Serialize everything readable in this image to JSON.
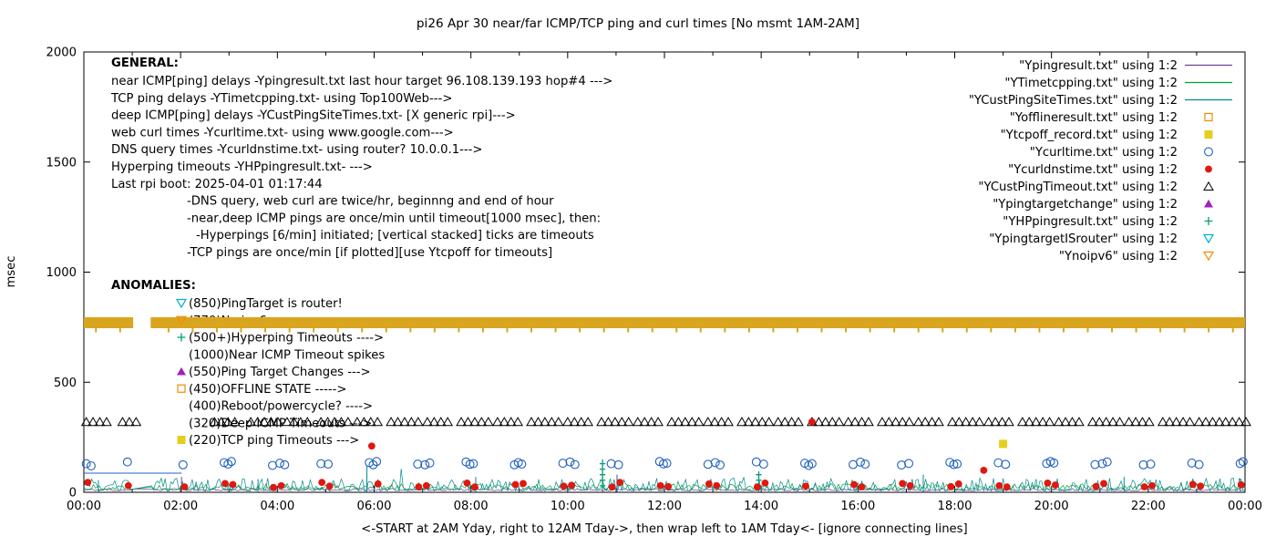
{
  "chart_data": {
    "type": "scatter",
    "title": "pi26 Apr 30  near/far ICMP/TCP ping and curl times [No msmt 1AM-2AM]",
    "xlabel": "<-START at 2AM Yday, right to 12AM Tday->, then wrap left to 1AM Tday<- [ignore connecting lines]",
    "ylabel": "msec",
    "ylim": [
      0,
      2000
    ],
    "xlim_hours": [
      0,
      24
    ],
    "grid": false,
    "x_ticks": [
      "00:00",
      "02:00",
      "04:00",
      "06:00",
      "08:00",
      "10:00",
      "12:00",
      "14:00",
      "16:00",
      "18:00",
      "20:00",
      "22:00",
      "00:00"
    ],
    "y_ticks": [
      0,
      500,
      1000,
      1500,
      2000
    ],
    "legend_position": "top-right",
    "legend": [
      {
        "label": "\"Ypingresult.txt\" using 1:2",
        "marker": "line",
        "color": "#7040A0"
      },
      {
        "label": "\"YTimetcpping.txt\" using 1:2",
        "marker": "line",
        "color": "#00A332"
      },
      {
        "label": "\"YCustPingSiteTimes.txt\" using 1:2",
        "marker": "line",
        "color": "#008B8B"
      },
      {
        "label": "\"Yofflineresult.txt\" using 1:2",
        "marker": "square-open",
        "color": "#F08C00"
      },
      {
        "label": "\"Ytcpoff_record.txt\" using 1:2",
        "marker": "square-filled",
        "color": "#E3CF1C"
      },
      {
        "label": "\"Ycurltime.txt\" using 1:2",
        "marker": "circle-open",
        "color": "#2060C0"
      },
      {
        "label": "\"Ycurldnstime.txt\" using 1:2",
        "marker": "circle-filled",
        "color": "#DF1810"
      },
      {
        "label": "\"YCustPingTimeout.txt\" using 1:2",
        "marker": "triangle-open",
        "color": "#000000"
      },
      {
        "label": "\"Ypingtargetchange\" using 1:2",
        "marker": "triangle-filled",
        "color": "#A020C0"
      },
      {
        "label": "\"YHPpingresult.txt\" using 1:2",
        "marker": "plus",
        "color": "#00A070"
      },
      {
        "label": "\"YpingtargetISrouter\" using 1:2",
        "marker": "triangle-down-open",
        "color": "#00AECC"
      },
      {
        "label": "\"Ynoipv6\" using 1:2",
        "marker": "triangle-down-open",
        "color": "#F08C00"
      }
    ],
    "annotations": {
      "general": {
        "header": "GENERAL:",
        "lines": [
          {
            "indent": 0,
            "text": "near ICMP[ping] delays -Ypingresult.txt last hour target 96.108.139.193 hop#4 --->"
          },
          {
            "indent": 0,
            "text": "TCP ping delays -YTimetcpping.txt- using Top100Web--->"
          },
          {
            "indent": 0,
            "text": "deep ICMP[ping] delays -YCustPingSiteTimes.txt- [X generic rpi]--->"
          },
          {
            "indent": 0,
            "text": "web curl times -Ycurltime.txt- using www.google.com--->"
          },
          {
            "indent": 0,
            "text": "DNS query times -Ycurldnstime.txt- using router? 10.0.0.1--->"
          },
          {
            "indent": 0,
            "text": "Hyperping timeouts -YHPpingresult.txt- --->"
          },
          {
            "indent": 0,
            "text": "Last rpi boot: 2025-04-01 01:17:44"
          },
          {
            "indent": 1,
            "text": "-DNS query, web curl are twice/hr, beginnng and end of hour"
          },
          {
            "indent": 1,
            "text": "-near,deep ICMP pings are once/min until timeout[1000 msec], then:"
          },
          {
            "indent": 2,
            "text": "-Hyperpings [6/min] initiated; [vertical stacked] ticks are timeouts"
          },
          {
            "indent": 1,
            "text": "-TCP pings are once/min [if plotted][use Ytcpoff for timeouts]"
          }
        ]
      },
      "anomalies": {
        "header": "ANOMALIES:",
        "lines": [
          {
            "marker": "triangle-down-open",
            "color": "#00AECC",
            "text": "(850)PingTarget is router!"
          },
          {
            "marker": "triangle-down-open",
            "color": "#F08C00",
            "text": "(770)No ipv6 --->",
            "note": "mostly hidden behind gold band"
          },
          {
            "marker": "plus",
            "color": "#00A070",
            "text": "(500+)Hyperping Timeouts ---->"
          },
          {
            "marker": null,
            "color": "#000000",
            "text": "(1000)Near ICMP Timeout spikes"
          },
          {
            "marker": "triangle-filled",
            "color": "#A020C0",
            "text": "(550)Ping Target Changes --->"
          },
          {
            "marker": "square-open",
            "color": "#F08C00",
            "text": "(450)OFFLINE STATE ----->"
          },
          {
            "marker": null,
            "color": "#000000",
            "text": "(400)Reboot/powercycle? ---->"
          },
          {
            "marker": null,
            "color": "#000000",
            "text": "(320)Deep ICMP Timeouts --->"
          },
          {
            "marker": "square-filled",
            "color": "#E3CF1C",
            "text": "(220)TCP ping Timeouts --->"
          }
        ]
      }
    },
    "series": {
      "noipv6_band": {
        "name": "Ynoipv6",
        "y": 770,
        "color": "#D9A51E",
        "segments_hours": [
          [
            0,
            1.02
          ],
          [
            1.38,
            24
          ]
        ],
        "tick_spacing_h": 0.5
      },
      "deep_icmp_timeouts": {
        "name": "YCustPingTimeout",
        "marker": "triangle-open",
        "color": "#000000",
        "y": 320,
        "run_spacing_h": 0.14,
        "runs": [
          [
            0.05,
            4
          ],
          [
            0.8,
            3
          ],
          [
            2.7,
            4
          ],
          [
            3.45,
            5
          ],
          [
            4.2,
            4
          ],
          [
            4.9,
            5
          ],
          [
            5.65,
            4
          ],
          [
            6.35,
            5
          ],
          [
            7.1,
            4
          ],
          [
            7.8,
            5
          ],
          [
            8.55,
            4
          ],
          [
            9.25,
            5
          ],
          [
            10.0,
            4
          ],
          [
            10.7,
            5
          ],
          [
            11.45,
            4
          ],
          [
            12.15,
            5
          ],
          [
            12.9,
            4
          ],
          [
            13.6,
            5
          ],
          [
            14.35,
            4
          ],
          [
            15.05,
            5
          ],
          [
            15.8,
            4
          ],
          [
            16.5,
            5
          ],
          [
            17.25,
            4
          ],
          [
            17.95,
            5
          ],
          [
            18.7,
            4
          ],
          [
            19.4,
            5
          ],
          [
            20.15,
            4
          ],
          [
            20.85,
            5
          ],
          [
            21.6,
            4
          ],
          [
            22.3,
            5
          ],
          [
            23.05,
            4
          ],
          [
            23.6,
            4
          ]
        ]
      },
      "curl_times": {
        "name": "Ycurltime",
        "marker": "circle-open",
        "color": "#2060C0",
        "points": [
          [
            0.05,
            130
          ],
          [
            0.15,
            120
          ],
          [
            0.9,
            138
          ],
          [
            2.05,
            125
          ],
          [
            2.9,
            135
          ],
          [
            2.98,
            128
          ],
          [
            3.05,
            140
          ],
          [
            3.9,
            122
          ],
          [
            4.05,
            132
          ],
          [
            4.15,
            125
          ],
          [
            4.9,
            130
          ],
          [
            5.05,
            128
          ],
          [
            5.9,
            135
          ],
          [
            5.98,
            125
          ],
          [
            6.05,
            140
          ],
          [
            6.9,
            128
          ],
          [
            7.05,
            125
          ],
          [
            7.15,
            133
          ],
          [
            7.9,
            138
          ],
          [
            7.98,
            127
          ],
          [
            8.05,
            130
          ],
          [
            8.9,
            125
          ],
          [
            8.98,
            135
          ],
          [
            9.05,
            128
          ],
          [
            9.9,
            132
          ],
          [
            10.05,
            138
          ],
          [
            10.15,
            126
          ],
          [
            10.9,
            130
          ],
          [
            11.05,
            125
          ],
          [
            11.9,
            140
          ],
          [
            11.98,
            129
          ],
          [
            12.05,
            132
          ],
          [
            12.9,
            127
          ],
          [
            13.05,
            135
          ],
          [
            13.15,
            124
          ],
          [
            13.9,
            138
          ],
          [
            14.05,
            128
          ],
          [
            14.9,
            132
          ],
          [
            14.98,
            122
          ],
          [
            15.05,
            130
          ],
          [
            15.9,
            126
          ],
          [
            16.05,
            137
          ],
          [
            16.15,
            128
          ],
          [
            16.9,
            124
          ],
          [
            17.05,
            131
          ],
          [
            17.9,
            136
          ],
          [
            17.98,
            126
          ],
          [
            18.05,
            129
          ],
          [
            18.9,
            134
          ],
          [
            19.05,
            127
          ],
          [
            19.9,
            131
          ],
          [
            19.98,
            140
          ],
          [
            20.05,
            133
          ],
          [
            20.9,
            126
          ],
          [
            21.05,
            130
          ],
          [
            21.15,
            138
          ],
          [
            21.9,
            125
          ],
          [
            22.05,
            128
          ],
          [
            22.9,
            133
          ],
          [
            23.05,
            126
          ],
          [
            23.9,
            131
          ],
          [
            23.96,
            139
          ]
        ]
      },
      "dns_times": {
        "name": "Ycurldnstime",
        "marker": "circle-filled",
        "color": "#DF1810",
        "points": [
          [
            0.08,
            45
          ],
          [
            0.92,
            30
          ],
          [
            2.08,
            25
          ],
          [
            2.92,
            40
          ],
          [
            3.08,
            35
          ],
          [
            3.92,
            22
          ],
          [
            4.08,
            30
          ],
          [
            4.92,
            45
          ],
          [
            5.08,
            28
          ],
          [
            5.95,
            210
          ],
          [
            6.08,
            38
          ],
          [
            6.92,
            25
          ],
          [
            7.08,
            30
          ],
          [
            7.92,
            42
          ],
          [
            8.08,
            24
          ],
          [
            8.92,
            35
          ],
          [
            9.08,
            40
          ],
          [
            9.92,
            28
          ],
          [
            10.08,
            32
          ],
          [
            10.92,
            24
          ],
          [
            11.08,
            45
          ],
          [
            11.92,
            30
          ],
          [
            12.08,
            26
          ],
          [
            12.92,
            38
          ],
          [
            13.08,
            30
          ],
          [
            13.92,
            24
          ],
          [
            14.08,
            42
          ],
          [
            14.92,
            28
          ],
          [
            15.05,
            320
          ],
          [
            15.92,
            35
          ],
          [
            16.08,
            25
          ],
          [
            16.92,
            40
          ],
          [
            17.08,
            30
          ],
          [
            17.92,
            26
          ],
          [
            18.08,
            38
          ],
          [
            18.6,
            100
          ],
          [
            18.92,
            30
          ],
          [
            19.08,
            24
          ],
          [
            19.92,
            42
          ],
          [
            20.08,
            33
          ],
          [
            20.92,
            27
          ],
          [
            21.08,
            40
          ],
          [
            21.92,
            25
          ],
          [
            22.08,
            30
          ],
          [
            22.92,
            36
          ],
          [
            23.08,
            28
          ],
          [
            23.92,
            34
          ]
        ]
      },
      "tcp_timeout_marks": {
        "name": "Ytcpoff_record",
        "marker": "square-filled",
        "color": "#E3CF1C",
        "points": [
          [
            19.0,
            220
          ]
        ]
      },
      "noise_lines": [
        {
          "name": "Ypingresult",
          "color": "#7040A0",
          "base": 8,
          "amp": 10,
          "seed": 11
        },
        {
          "name": "YTimetcpping",
          "color": "#00A332",
          "base": 14,
          "amp": 26,
          "seed": 22
        },
        {
          "name": "YCustPingSiteTimes",
          "color": "#008B8B",
          "base": 6,
          "amp": 58,
          "seed": 33,
          "spike_prob": 0.02,
          "spike_add": 50
        }
      ],
      "misc_segments": [
        {
          "color": "#2060C0",
          "points": [
            [
              0,
              87
            ],
            [
              2.02,
              87
            ]
          ]
        }
      ],
      "spikes": [
        [
          0.3,
          55,
          "#008B8B"
        ],
        [
          2.02,
          70,
          "#7040A0"
        ],
        [
          3.6,
          60,
          "#008B8B"
        ],
        [
          5.85,
          120,
          "#008B8B"
        ],
        [
          8.1,
          70,
          "#008B8B"
        ],
        [
          10.72,
          150,
          "#7040A0"
        ],
        [
          11.02,
          80,
          "#2060C0"
        ],
        [
          13.95,
          95,
          "#7040A0"
        ],
        [
          17.35,
          80,
          "#008B8B"
        ],
        [
          21.5,
          70,
          "#008B8B"
        ],
        [
          23.9,
          60,
          "#008B8B"
        ]
      ],
      "hyperping_tick_stacks": [
        {
          "x": 10.72,
          "color": "#00A070",
          "ticks": [
            30,
            55,
            80,
            105,
            130
          ]
        },
        {
          "x": 13.95,
          "color": "#00A070",
          "ticks": [
            30,
            55,
            80
          ]
        }
      ],
      "no_measurement_gap_hours": [
        1.02,
        1.38
      ]
    }
  }
}
